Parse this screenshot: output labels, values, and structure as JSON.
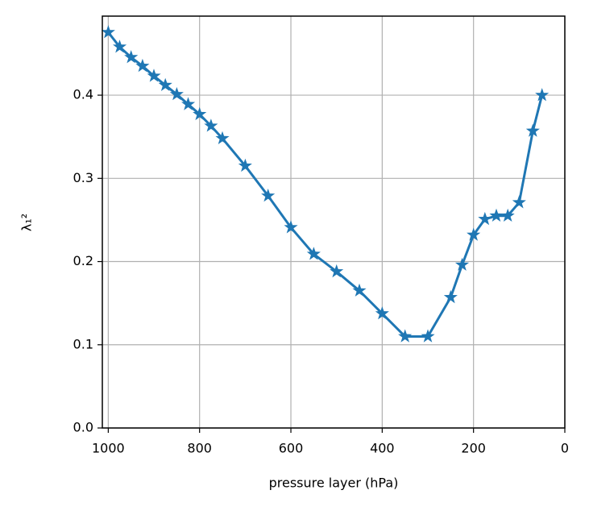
{
  "chart_data": {
    "type": "line",
    "xlabel": "pressure layer (hPa)",
    "ylabel": "λ₁²",
    "x": [
      1000,
      975,
      950,
      925,
      900,
      875,
      850,
      825,
      800,
      775,
      750,
      700,
      650,
      600,
      550,
      500,
      450,
      400,
      350,
      300,
      250,
      225,
      200,
      175,
      150,
      125,
      100,
      70,
      50
    ],
    "series": [
      {
        "name": "λ₁²",
        "color": "#1f77b4",
        "values": [
          0.4755,
          0.458,
          0.4455,
          0.435,
          0.423,
          0.412,
          0.401,
          0.389,
          0.377,
          0.363,
          0.348,
          0.315,
          0.279,
          0.241,
          0.209,
          0.188,
          0.165,
          0.1375,
          0.11,
          0.11,
          0.157,
          0.196,
          0.232,
          0.251,
          0.255,
          0.255,
          0.271,
          0.357,
          0.4
        ]
      }
    ],
    "xlim": [
      1013,
      0
    ],
    "xticks": [
      1000,
      800,
      600,
      400,
      200,
      0
    ],
    "ylim": [
      0,
      0.495
    ],
    "yticks": [
      {
        "value": 0,
        "label": "0.0"
      },
      0.1,
      0.2,
      0.3,
      0.4
    ],
    "grid": true,
    "marker": "star"
  }
}
